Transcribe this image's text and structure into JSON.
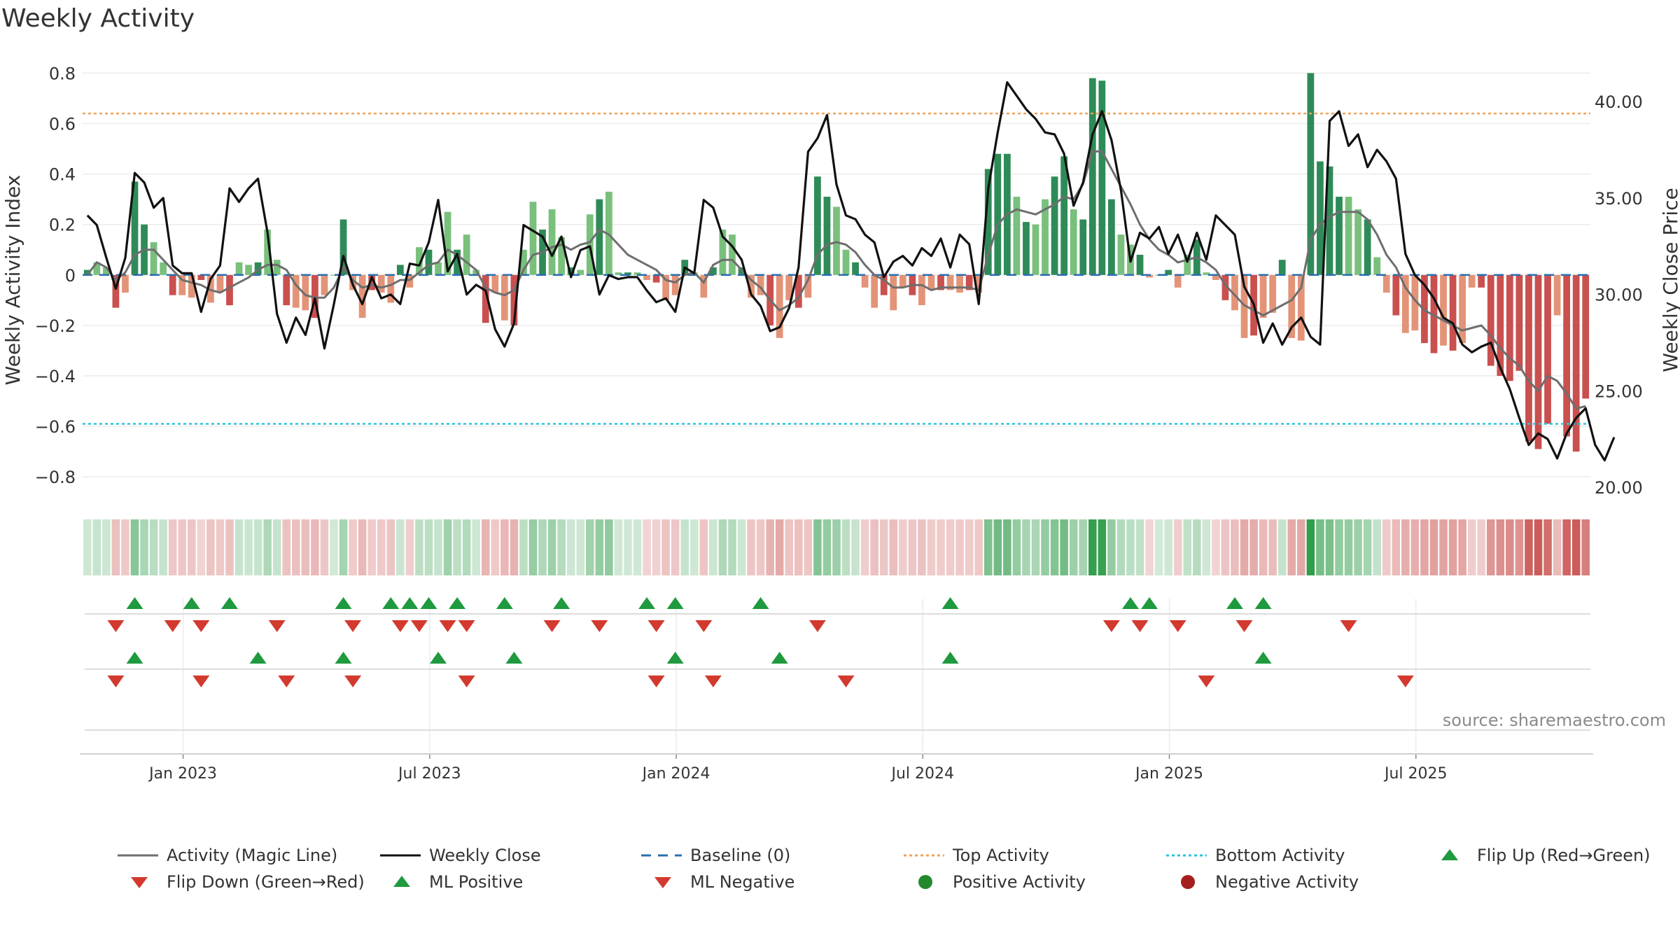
{
  "chart_data": {
    "type": "bar",
    "title": "Weekly Activity",
    "source": "source: sharemaestro.com",
    "ylabel": "Weekly Activity Index",
    "y2label": "Weekly Close Price",
    "ylim": [
      -0.88,
      0.84
    ],
    "y2lim": [
      19.5,
      42
    ],
    "yticks": [
      "0.8",
      "0.6",
      "0.4",
      "0.2",
      "0",
      "−0.2",
      "−0.4",
      "−0.6",
      "−0.8"
    ],
    "y2ticks": [
      "40.00",
      "35.00",
      "30.00",
      "25.00",
      "20.00"
    ],
    "xticks": [
      "Jan 2023",
      "Jul 2023",
      "Jan 2024",
      "Jul 2024",
      "Jan 2025",
      "Jul 2025"
    ],
    "top_activity": 0.64,
    "bottom_activity": -0.59,
    "activity": [
      0.02,
      0.05,
      0.03,
      -0.13,
      -0.07,
      0.37,
      0.2,
      0.13,
      0.05,
      -0.08,
      -0.08,
      -0.09,
      -0.02,
      -0.11,
      -0.07,
      -0.12,
      0.05,
      0.04,
      0.05,
      0.18,
      0.06,
      -0.12,
      -0.13,
      -0.14,
      -0.17,
      -0.08,
      0.0,
      0.22,
      -0.06,
      -0.17,
      -0.06,
      -0.07,
      -0.11,
      0.04,
      -0.05,
      0.11,
      0.1,
      0.05,
      0.25,
      0.1,
      0.16,
      0.02,
      -0.19,
      -0.07,
      -0.18,
      -0.2,
      0.1,
      0.29,
      0.18,
      0.26,
      0.15,
      0.03,
      0.02,
      0.24,
      0.3,
      0.33,
      0.01,
      0.01,
      0.01,
      -0.02,
      -0.03,
      -0.1,
      -0.08,
      0.06,
      0.01,
      -0.09,
      0.03,
      0.18,
      0.16,
      0.03,
      -0.09,
      -0.08,
      -0.2,
      -0.25,
      -0.1,
      -0.13,
      -0.09,
      0.39,
      0.31,
      0.27,
      0.1,
      0.05,
      -0.05,
      -0.13,
      -0.08,
      -0.14,
      -0.05,
      -0.08,
      -0.12,
      -0.06,
      -0.06,
      -0.06,
      -0.07,
      -0.06,
      -0.07,
      0.42,
      0.48,
      0.48,
      0.31,
      0.21,
      0.2,
      0.3,
      0.39,
      0.47,
      0.26,
      0.22,
      0.78,
      0.77,
      0.3,
      0.16,
      0.12,
      0.08,
      -0.01,
      0.0,
      0.02,
      -0.05,
      0.08,
      0.14,
      0.01,
      -0.02,
      -0.1,
      -0.14,
      -0.25,
      -0.24,
      -0.17,
      -0.15,
      0.06,
      -0.25,
      -0.26,
      0.8,
      0.45,
      0.43,
      0.31,
      0.31,
      0.26,
      0.22,
      0.07,
      -0.07,
      -0.16,
      -0.23,
      -0.22,
      -0.27,
      -0.31,
      -0.28,
      -0.3,
      -0.27,
      -0.05,
      -0.05,
      -0.36,
      -0.4,
      -0.42,
      -0.38,
      -0.66,
      -0.69,
      -0.59,
      -0.16,
      -0.64,
      -0.7,
      -0.49
    ],
    "magic_line": [
      0.0,
      0.05,
      0.03,
      -0.02,
      0.01,
      0.08,
      0.1,
      0.1,
      0.06,
      0.02,
      -0.02,
      -0.03,
      -0.04,
      -0.06,
      -0.07,
      -0.05,
      -0.03,
      -0.01,
      0.02,
      0.04,
      0.04,
      0.02,
      -0.04,
      -0.08,
      -0.09,
      -0.09,
      -0.05,
      0.03,
      -0.02,
      -0.05,
      -0.04,
      -0.05,
      -0.04,
      -0.02,
      -0.02,
      0.01,
      0.04,
      0.05,
      0.1,
      0.08,
      0.05,
      0.02,
      -0.05,
      -0.07,
      -0.08,
      -0.06,
      0.02,
      0.08,
      0.09,
      0.11,
      0.12,
      0.1,
      0.12,
      0.13,
      0.18,
      0.16,
      0.12,
      0.08,
      0.06,
      0.04,
      0.02,
      -0.02,
      -0.03,
      0.0,
      0.01,
      -0.03,
      0.04,
      0.06,
      0.06,
      0.02,
      -0.02,
      -0.05,
      -0.1,
      -0.14,
      -0.12,
      -0.09,
      -0.02,
      0.08,
      0.12,
      0.13,
      0.12,
      0.09,
      0.04,
      0.0,
      -0.02,
      -0.05,
      -0.05,
      -0.04,
      -0.04,
      -0.06,
      -0.05,
      -0.05,
      -0.05,
      -0.05,
      -0.06,
      0.08,
      0.2,
      0.24,
      0.26,
      0.25,
      0.24,
      0.26,
      0.28,
      0.31,
      0.3,
      0.36,
      0.49,
      0.49,
      0.42,
      0.35,
      0.28,
      0.2,
      0.14,
      0.1,
      0.08,
      0.05,
      0.06,
      0.07,
      0.05,
      0.02,
      -0.04,
      -0.08,
      -0.12,
      -0.14,
      -0.16,
      -0.14,
      -0.12,
      -0.1,
      -0.05,
      0.14,
      0.2,
      0.23,
      0.25,
      0.25,
      0.25,
      0.22,
      0.16,
      0.08,
      0.03,
      -0.05,
      -0.1,
      -0.14,
      -0.16,
      -0.18,
      -0.2,
      -0.22,
      -0.21,
      -0.2,
      -0.24,
      -0.29,
      -0.33,
      -0.36,
      -0.42,
      -0.46,
      -0.4,
      -0.42,
      -0.47,
      -0.53,
      -0.52
    ],
    "weekly_close": [
      34.1,
      33.6,
      31.9,
      30.3,
      31.9,
      36.3,
      35.8,
      34.5,
      35.0,
      31.5,
      31.1,
      31.1,
      29.1,
      30.8,
      31.5,
      35.5,
      34.8,
      35.5,
      36.0,
      33.2,
      29.0,
      27.5,
      28.8,
      27.9,
      29.8,
      27.2,
      29.5,
      32.0,
      30.5,
      29.5,
      30.9,
      29.8,
      30.0,
      29.5,
      31.6,
      31.5,
      32.7,
      34.9,
      31.2,
      32.1,
      30.0,
      30.5,
      30.2,
      28.2,
      27.3,
      28.5,
      33.6,
      33.3,
      33.0,
      32.0,
      33.0,
      30.9,
      32.3,
      32.5,
      30.0,
      31.0,
      30.8,
      30.9,
      30.9,
      30.2,
      29.6,
      29.8,
      29.1,
      31.4,
      31.1,
      34.9,
      34.5,
      33.0,
      32.5,
      31.8,
      30.0,
      29.4,
      28.1,
      28.3,
      29.3,
      31.4,
      37.4,
      38.1,
      39.3,
      35.7,
      34.1,
      33.9,
      33.1,
      32.7,
      30.9,
      31.7,
      32.0,
      31.5,
      32.4,
      32.0,
      32.9,
      31.4,
      33.1,
      32.6,
      29.5,
      35.5,
      38.4,
      41.0,
      40.3,
      39.6,
      39.1,
      38.4,
      38.3,
      37.3,
      34.6,
      35.8,
      38.3,
      39.5,
      38.0,
      35.4,
      31.7,
      33.2,
      32.9,
      33.5,
      32.1,
      33.1,
      31.7,
      33.2,
      31.8,
      34.1,
      33.6,
      33.1,
      30.4,
      29.5,
      27.5,
      28.5,
      27.4,
      28.3,
      28.8,
      27.8,
      27.4,
      39.0,
      39.5,
      37.7,
      38.3,
      36.6,
      37.5,
      36.9,
      36.0,
      32.1,
      31.0,
      30.5,
      29.8,
      28.8,
      28.5,
      27.4,
      27.0,
      27.3,
      27.5,
      26.2,
      25.1,
      23.6,
      22.2,
      22.8,
      22.5,
      21.5,
      22.8,
      23.6,
      24.1,
      22.2,
      21.4,
      22.6
    ],
    "flip_up": [
      5,
      11,
      15,
      27,
      32,
      34,
      36,
      39,
      44,
      50,
      59,
      62,
      71,
      91,
      110,
      112,
      121,
      124
    ],
    "flip_down": [
      3,
      9,
      12,
      20,
      28,
      33,
      35,
      38,
      40,
      49,
      54,
      60,
      65,
      77,
      108,
      111,
      115,
      122,
      133
    ],
    "ml_positive": [
      5,
      18,
      27,
      37,
      45,
      62,
      73,
      91,
      124
    ],
    "ml_negative": [
      3,
      12,
      21,
      28,
      40,
      60,
      66,
      80,
      118,
      139
    ],
    "series": [
      {
        "name": "Activity (Magic Line)",
        "color": "#6e6e6e"
      },
      {
        "name": "Weekly Close",
        "color": "#111111"
      },
      {
        "name": "Baseline (0)",
        "color": "#2a6fb0"
      },
      {
        "name": "Top Activity",
        "color": "#f0a25a"
      },
      {
        "name": "Bottom Activity",
        "color": "#2bc4d8"
      },
      {
        "name": "Flip Up (Red→Green)",
        "color": "#1f9a3e"
      },
      {
        "name": "Flip Down (Green→Red)",
        "color": "#d33a2f"
      },
      {
        "name": "ML Positive",
        "color": "#1f9a3e"
      },
      {
        "name": "ML Negative",
        "color": "#d33a2f"
      },
      {
        "name": "Positive Activity",
        "color": "#23892c"
      },
      {
        "name": "Negative Activity",
        "color": "#a51f1f"
      }
    ]
  }
}
